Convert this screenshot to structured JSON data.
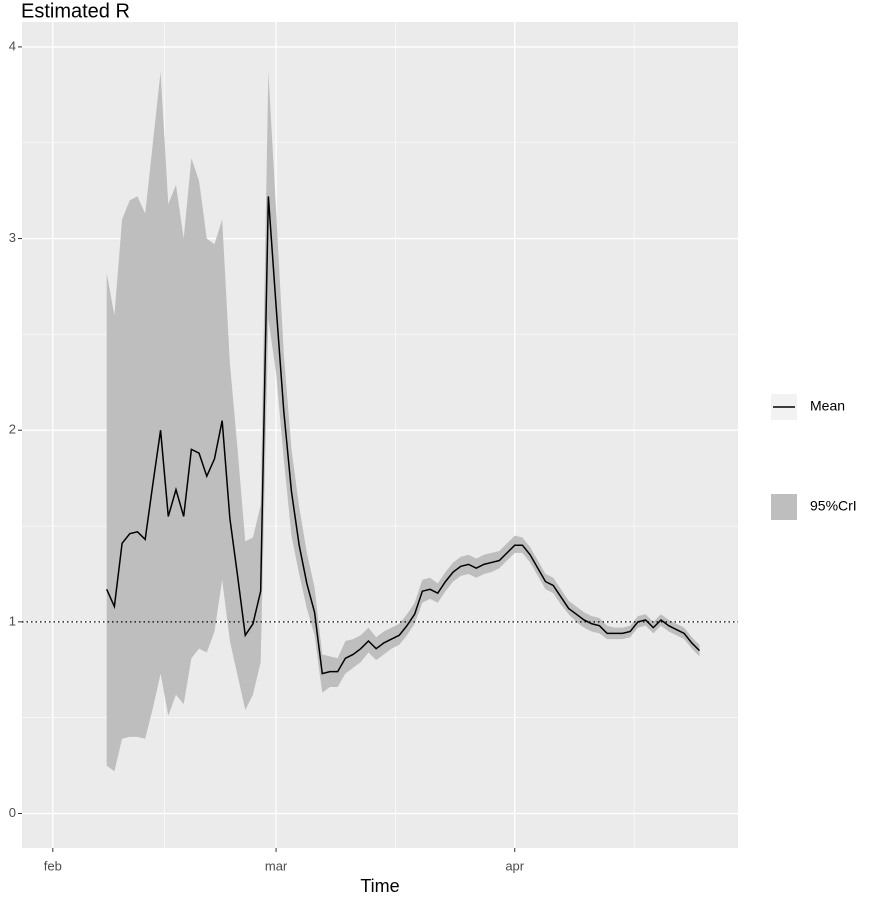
{
  "chart_data": {
    "type": "line",
    "title": "Estimated R",
    "x_label": "Time",
    "x": [
      7,
      8,
      9,
      10,
      11,
      12,
      13,
      14,
      15,
      16,
      17,
      18,
      19,
      20,
      21,
      22,
      23,
      24,
      25,
      26,
      27,
      28,
      29,
      30,
      31,
      32,
      33,
      34,
      35,
      36,
      37,
      38,
      39,
      40,
      41,
      42,
      43,
      44,
      45,
      46,
      47,
      48,
      49,
      50,
      51,
      52,
      53,
      54,
      55,
      56,
      57,
      58,
      59,
      60,
      61,
      62,
      63,
      64,
      65,
      66,
      67,
      68,
      69,
      70,
      71,
      72,
      73,
      74,
      75,
      76,
      77,
      78,
      79,
      80,
      81,
      82,
      83,
      84
    ],
    "series": [
      {
        "name": "Mean",
        "color": "#000000",
        "values": [
          1.17,
          1.08,
          1.41,
          1.46,
          1.47,
          1.43,
          1.72,
          2.0,
          1.55,
          1.69,
          1.55,
          1.9,
          1.88,
          1.76,
          1.85,
          2.05,
          1.54,
          1.24,
          0.93,
          0.99,
          1.16,
          3.22,
          2.65,
          2.1,
          1.68,
          1.4,
          1.2,
          1.05,
          0.73,
          0.74,
          0.74,
          0.81,
          0.83,
          0.86,
          0.9,
          0.86,
          0.89,
          0.91,
          0.93,
          0.98,
          1.04,
          1.16,
          1.17,
          1.15,
          1.21,
          1.26,
          1.29,
          1.3,
          1.28,
          1.3,
          1.31,
          1.32,
          1.36,
          1.4,
          1.4,
          1.35,
          1.28,
          1.21,
          1.19,
          1.13,
          1.07,
          1.04,
          1.01,
          0.99,
          0.98,
          0.94,
          0.94,
          0.94,
          0.95,
          1.0,
          1.01,
          0.97,
          1.01,
          0.98,
          0.96,
          0.94,
          0.89,
          0.85
        ]
      },
      {
        "name": "95%CrI",
        "color": "#bebebe",
        "upper": [
          2.82,
          2.6,
          3.1,
          3.2,
          3.22,
          3.13,
          3.5,
          3.87,
          3.18,
          3.28,
          3.0,
          3.42,
          3.3,
          3.0,
          2.97,
          3.1,
          2.35,
          1.9,
          1.42,
          1.44,
          1.61,
          3.87,
          3.15,
          2.4,
          1.9,
          1.6,
          1.36,
          1.18,
          0.83,
          0.82,
          0.81,
          0.9,
          0.91,
          0.93,
          0.97,
          0.92,
          0.95,
          0.97,
          0.99,
          1.04,
          1.1,
          1.22,
          1.23,
          1.2,
          1.26,
          1.31,
          1.34,
          1.35,
          1.33,
          1.35,
          1.36,
          1.37,
          1.41,
          1.45,
          1.44,
          1.39,
          1.32,
          1.25,
          1.23,
          1.17,
          1.11,
          1.08,
          1.05,
          1.03,
          1.02,
          0.98,
          0.97,
          0.97,
          0.98,
          1.03,
          1.04,
          1.0,
          1.04,
          1.01,
          0.99,
          0.97,
          0.92,
          0.88
        ],
        "lower": [
          0.25,
          0.22,
          0.39,
          0.4,
          0.4,
          0.39,
          0.55,
          0.73,
          0.51,
          0.62,
          0.57,
          0.81,
          0.86,
          0.84,
          0.95,
          1.22,
          0.9,
          0.72,
          0.54,
          0.62,
          0.79,
          2.58,
          2.3,
          1.85,
          1.45,
          1.25,
          1.07,
          0.93,
          0.63,
          0.66,
          0.66,
          0.73,
          0.76,
          0.79,
          0.84,
          0.8,
          0.83,
          0.86,
          0.88,
          0.93,
          0.99,
          1.1,
          1.12,
          1.1,
          1.16,
          1.21,
          1.24,
          1.25,
          1.23,
          1.25,
          1.26,
          1.28,
          1.32,
          1.36,
          1.36,
          1.31,
          1.24,
          1.17,
          1.15,
          1.09,
          1.04,
          1.0,
          0.97,
          0.95,
          0.94,
          0.91,
          0.91,
          0.91,
          0.92,
          0.97,
          0.98,
          0.94,
          0.98,
          0.95,
          0.93,
          0.91,
          0.86,
          0.82
        ]
      }
    ],
    "reference_line": 1,
    "xlim": [
      -4,
      89
    ],
    "xticks": [
      {
        "value": 0,
        "label": "feb"
      },
      {
        "value": 29,
        "label": "mar"
      },
      {
        "value": 60,
        "label": "apr"
      }
    ],
    "ylim": [
      -0.18,
      4.13
    ],
    "yticks": [
      0,
      1,
      2,
      3,
      4
    ],
    "grid": true,
    "legend": "right"
  }
}
